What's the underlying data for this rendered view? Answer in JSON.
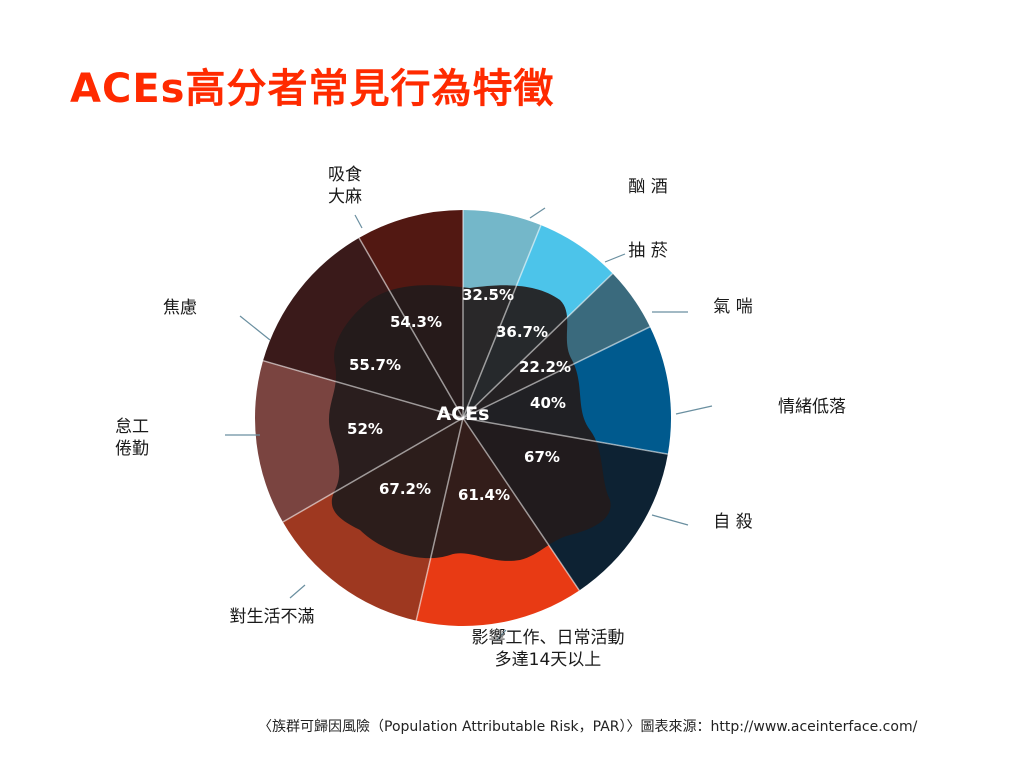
{
  "page": {
    "title": "ACEs高分者常見行為特徵"
  },
  "chart_data": {
    "type": "pie",
    "center_label": "ACEs",
    "note": "〈族群可歸因風險（Population Attributable Risk，PAR）〉圖表來源：http://www.aceinterface.com/",
    "slices": [
      {
        "name": "酗 酒",
        "value": "32.5%",
        "color": "#74b7c9"
      },
      {
        "name": "抽 菸",
        "value": "36.7%",
        "color": "#4cc4ea"
      },
      {
        "name": "氣 喘",
        "value": "22.2%",
        "color": "#3a6a7d"
      },
      {
        "name": "情緒低落",
        "value": "40%",
        "color": "#005a8e"
      },
      {
        "name": "自 殺",
        "value": "67%",
        "color": "#0d2233"
      },
      {
        "name": "影響工作、日常活動|多達14天以上",
        "value": "61.4%",
        "color": "#e83a14"
      },
      {
        "name": "對生活不滿",
        "value": "67.2%",
        "color": "#9e3820"
      },
      {
        "name": "怠工|倦勤",
        "value": "52%",
        "color": "#7a4440"
      },
      {
        "name": "焦慮",
        "value": "55.7%",
        "color": "#3a1a1a"
      },
      {
        "name": "吸食|大麻",
        "value": "54.3%",
        "color": "#521812"
      }
    ]
  }
}
